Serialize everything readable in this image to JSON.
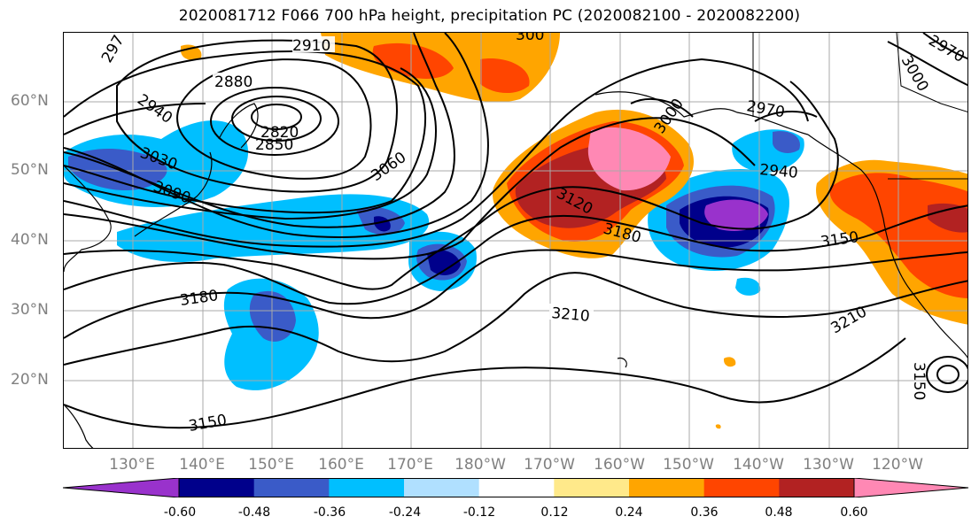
{
  "title": "2020081712 F066 700 hPa height, precipitation PC (2020082100 - 2020082200)",
  "map": {
    "lat_labels": [
      "60°N",
      "50°N",
      "40°N",
      "30°N",
      "20°N"
    ],
    "lon_labels": [
      "130°E",
      "140°E",
      "150°E",
      "160°E",
      "170°E",
      "180°W",
      "170°W",
      "160°W",
      "150°W",
      "140°W",
      "130°W",
      "120°W"
    ],
    "contour_labels": [
      "2910",
      "2880",
      "2820",
      "2850",
      "2940",
      "3030",
      "3090",
      "3060",
      "3120",
      "3180",
      "3150",
      "3210",
      "3210",
      "3180",
      "3150",
      "2970",
      "2940",
      "3000",
      "3000",
      "2970",
      "297",
      "300",
      "3150"
    ]
  },
  "colorbar": {
    "colors": [
      "#9932cc",
      "#00008b",
      "#3a5bc8",
      "#00bfff",
      "#b0e0ff",
      "#ffffff",
      "#ffe98a",
      "#ffa500",
      "#ff4500",
      "#b22222",
      "#ff88b4"
    ],
    "tick_labels": [
      "-0.60",
      "-0.48",
      "-0.36",
      "-0.24",
      "-0.12",
      "0.12",
      "0.24",
      "0.36",
      "0.48",
      "0.60"
    ]
  }
}
